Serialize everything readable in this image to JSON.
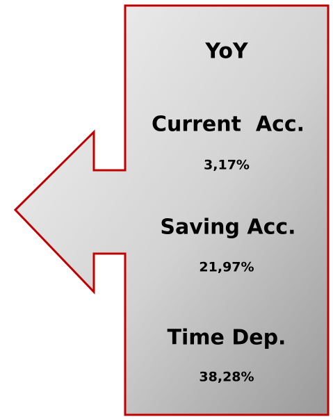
{
  "title": "YoY",
  "items": [
    {
      "label": "Current  Acc.",
      "value": "3,17%"
    },
    {
      "label": "Saving Acc.",
      "value": "21,97%"
    },
    {
      "label": "Time Dep.",
      "value": "38,28%"
    }
  ]
}
